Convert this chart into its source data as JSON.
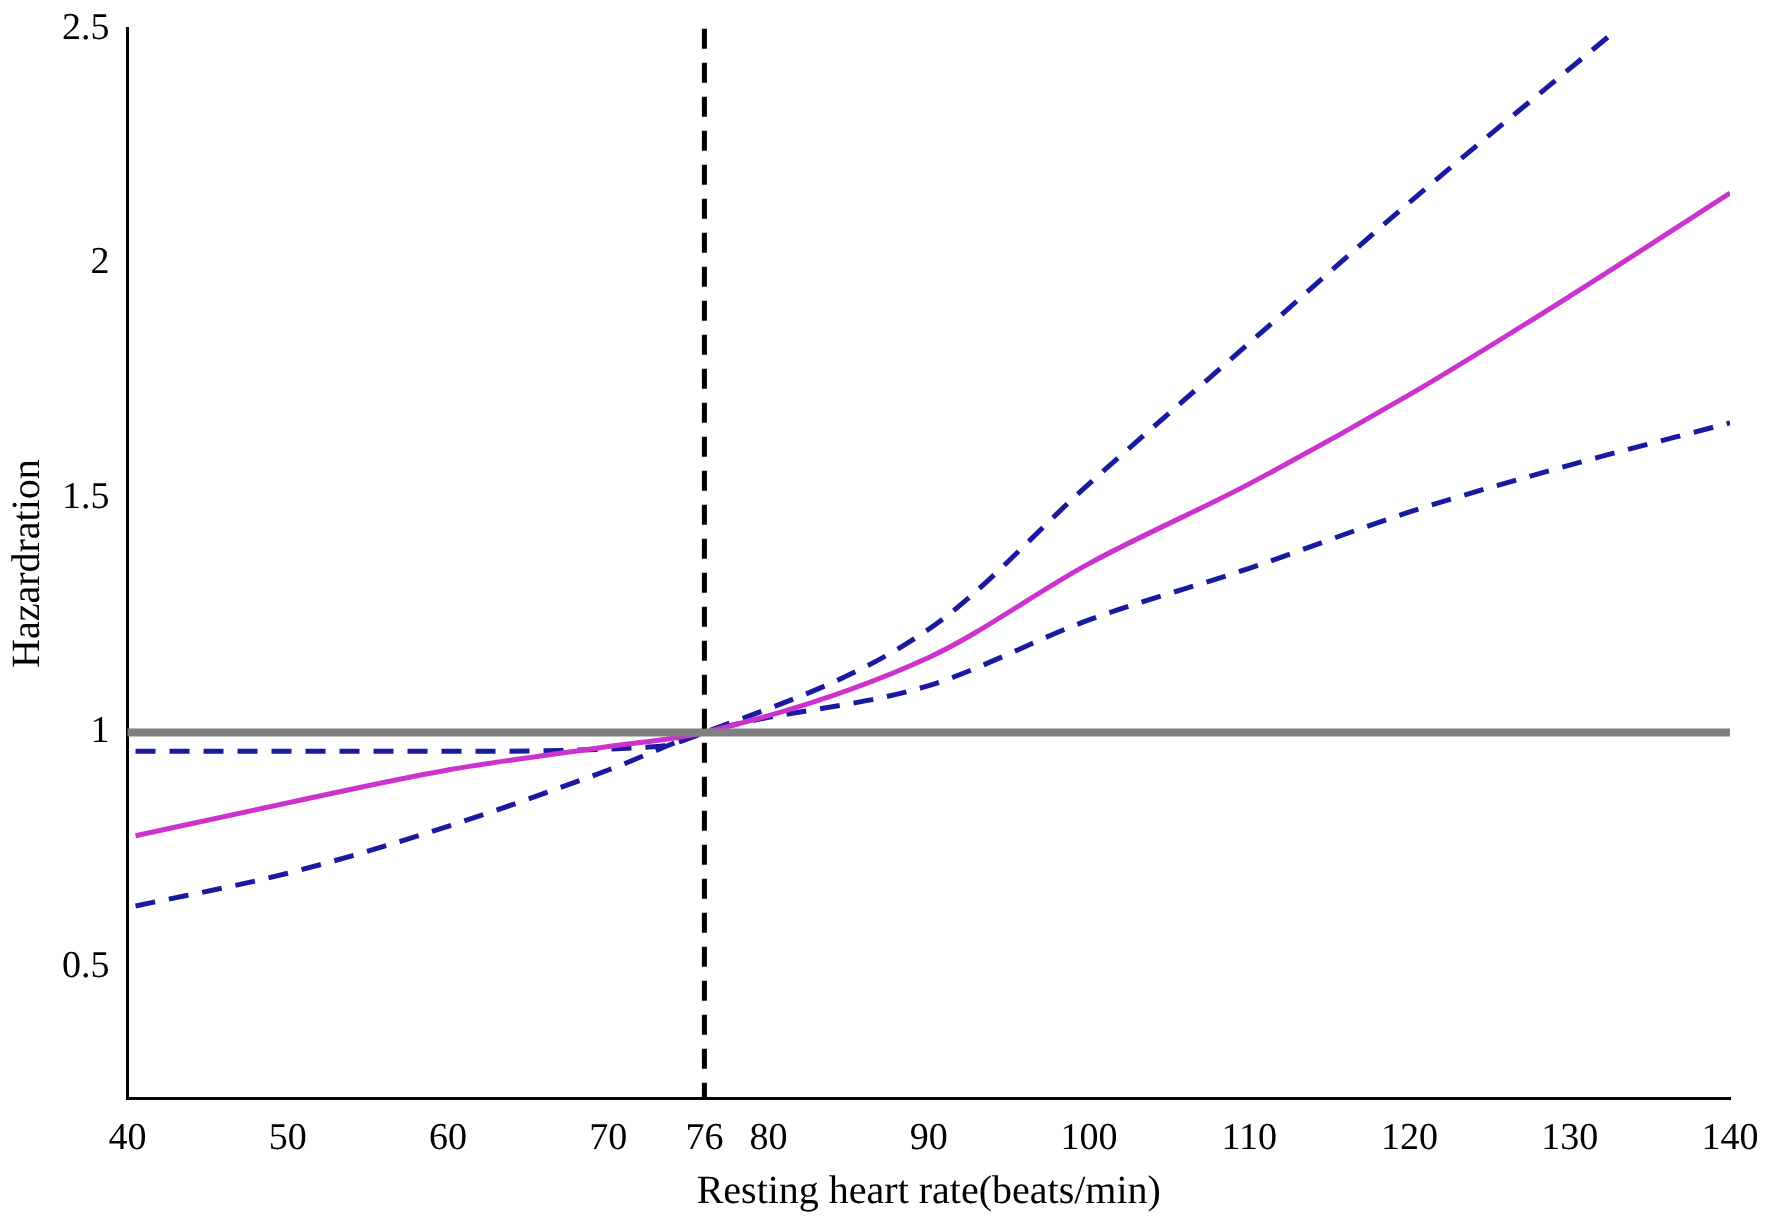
{
  "chart_data": {
    "type": "line",
    "xlabel": "Resting heart rate(beats/min)",
    "ylabel": "Hazardration",
    "xlim": [
      40,
      140
    ],
    "xticks": [
      40,
      50,
      60,
      70,
      76,
      80,
      90,
      100,
      110,
      120,
      130,
      140
    ],
    "ylim": [
      0.22,
      2.5
    ],
    "yticks": [
      0.5,
      1,
      1.5,
      2,
      2.5
    ],
    "grid": false,
    "legend": false,
    "marker": "none",
    "series": [
      {
        "color": "#cc33cc",
        "line_style": "solid",
        "x": [
          40.5,
          50,
          60,
          70,
          76,
          90,
          100,
          110,
          120,
          130,
          140
        ],
        "values": [
          0.78,
          0.85,
          0.92,
          0.97,
          1.0,
          1.16,
          1.36,
          1.53,
          1.72,
          1.93,
          2.15
        ]
      },
      {
        "color": "#1a1aa0",
        "line_style": "dashed",
        "x": [
          40.5,
          60,
          73,
          76,
          90,
          100,
          110,
          120,
          133
        ],
        "values": [
          0.96,
          0.96,
          0.97,
          1.0,
          1.22,
          1.53,
          1.83,
          2.13,
          2.5
        ]
      },
      {
        "color": "#1a1aa0",
        "line_style": "dashed",
        "x": [
          40.5,
          50,
          60,
          70,
          76,
          90,
          100,
          110,
          120,
          130,
          140
        ],
        "values": [
          0.63,
          0.7,
          0.8,
          0.92,
          1.0,
          1.1,
          1.24,
          1.35,
          1.47,
          1.57,
          1.66
        ]
      }
    ],
    "ref_lines": [
      {
        "axis": "y",
        "value": 1,
        "color": "#808080",
        "line_style": "solid"
      },
      {
        "axis": "x",
        "value": 76,
        "color": "#000000",
        "line_style": "dashed"
      }
    ]
  }
}
